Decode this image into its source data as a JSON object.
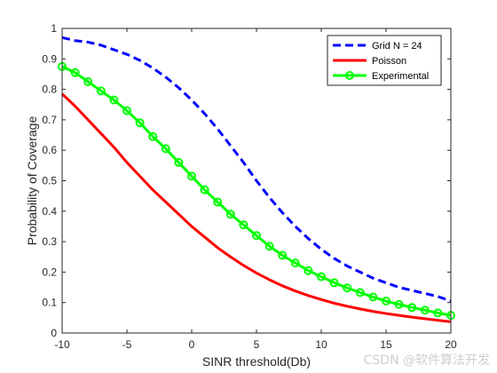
{
  "chart_data": {
    "type": "line",
    "xlabel": "SINR threshold(Db)",
    "ylabel": "Probability of Coverage",
    "xlim": [
      -10,
      20
    ],
    "ylim": [
      0,
      1
    ],
    "xticks": [
      -10,
      -5,
      0,
      5,
      10,
      15,
      20
    ],
    "yticks": [
      0,
      0.1,
      0.2,
      0.3,
      0.4,
      0.5,
      0.6,
      0.7,
      0.8,
      0.9,
      1
    ],
    "grid": false,
    "legend_position": "top-right",
    "series": [
      {
        "name": "Grid N = 24",
        "color": "#0000ff",
        "style": "dashed",
        "marker": "none",
        "x": [
          -10,
          -9,
          -8,
          -7,
          -6,
          -5,
          -4,
          -3,
          -2,
          -1,
          0,
          1,
          2,
          3,
          4,
          5,
          6,
          7,
          8,
          9,
          10,
          11,
          12,
          13,
          14,
          15,
          16,
          17,
          18,
          19,
          20
        ],
        "values": [
          0.97,
          0.96,
          0.955,
          0.945,
          0.93,
          0.915,
          0.895,
          0.87,
          0.84,
          0.805,
          0.765,
          0.72,
          0.67,
          0.615,
          0.56,
          0.5,
          0.445,
          0.395,
          0.35,
          0.31,
          0.275,
          0.245,
          0.22,
          0.2,
          0.18,
          0.165,
          0.15,
          0.14,
          0.13,
          0.12,
          0.105
        ]
      },
      {
        "name": "Poisson",
        "color": "#ff0000",
        "style": "solid",
        "marker": "none",
        "x": [
          -10,
          -9,
          -8,
          -7,
          -6,
          -5,
          -4,
          -3,
          -2,
          -1,
          0,
          1,
          2,
          3,
          4,
          5,
          6,
          7,
          8,
          9,
          10,
          11,
          12,
          13,
          14,
          15,
          16,
          17,
          18,
          19,
          20
        ],
        "values": [
          0.785,
          0.745,
          0.7,
          0.655,
          0.61,
          0.56,
          0.515,
          0.47,
          0.43,
          0.39,
          0.35,
          0.315,
          0.28,
          0.25,
          0.222,
          0.197,
          0.175,
          0.155,
          0.138,
          0.123,
          0.11,
          0.098,
          0.088,
          0.079,
          0.071,
          0.064,
          0.058,
          0.052,
          0.047,
          0.042,
          0.037
        ]
      },
      {
        "name": "Experimental",
        "color": "#00ff00",
        "style": "solid",
        "marker": "circle",
        "x": [
          -10,
          -9,
          -8,
          -7,
          -6,
          -5,
          -4,
          -3,
          -2,
          -1,
          0,
          1,
          2,
          3,
          4,
          5,
          6,
          7,
          8,
          9,
          10,
          11,
          12,
          13,
          14,
          15,
          16,
          17,
          18,
          19,
          20
        ],
        "values": [
          0.875,
          0.855,
          0.825,
          0.795,
          0.765,
          0.73,
          0.69,
          0.645,
          0.605,
          0.56,
          0.515,
          0.47,
          0.43,
          0.39,
          0.355,
          0.32,
          0.285,
          0.255,
          0.23,
          0.205,
          0.185,
          0.165,
          0.148,
          0.133,
          0.118,
          0.105,
          0.094,
          0.084,
          0.075,
          0.066,
          0.058
        ]
      }
    ]
  },
  "watermark": "CSDN @软件算法开发"
}
